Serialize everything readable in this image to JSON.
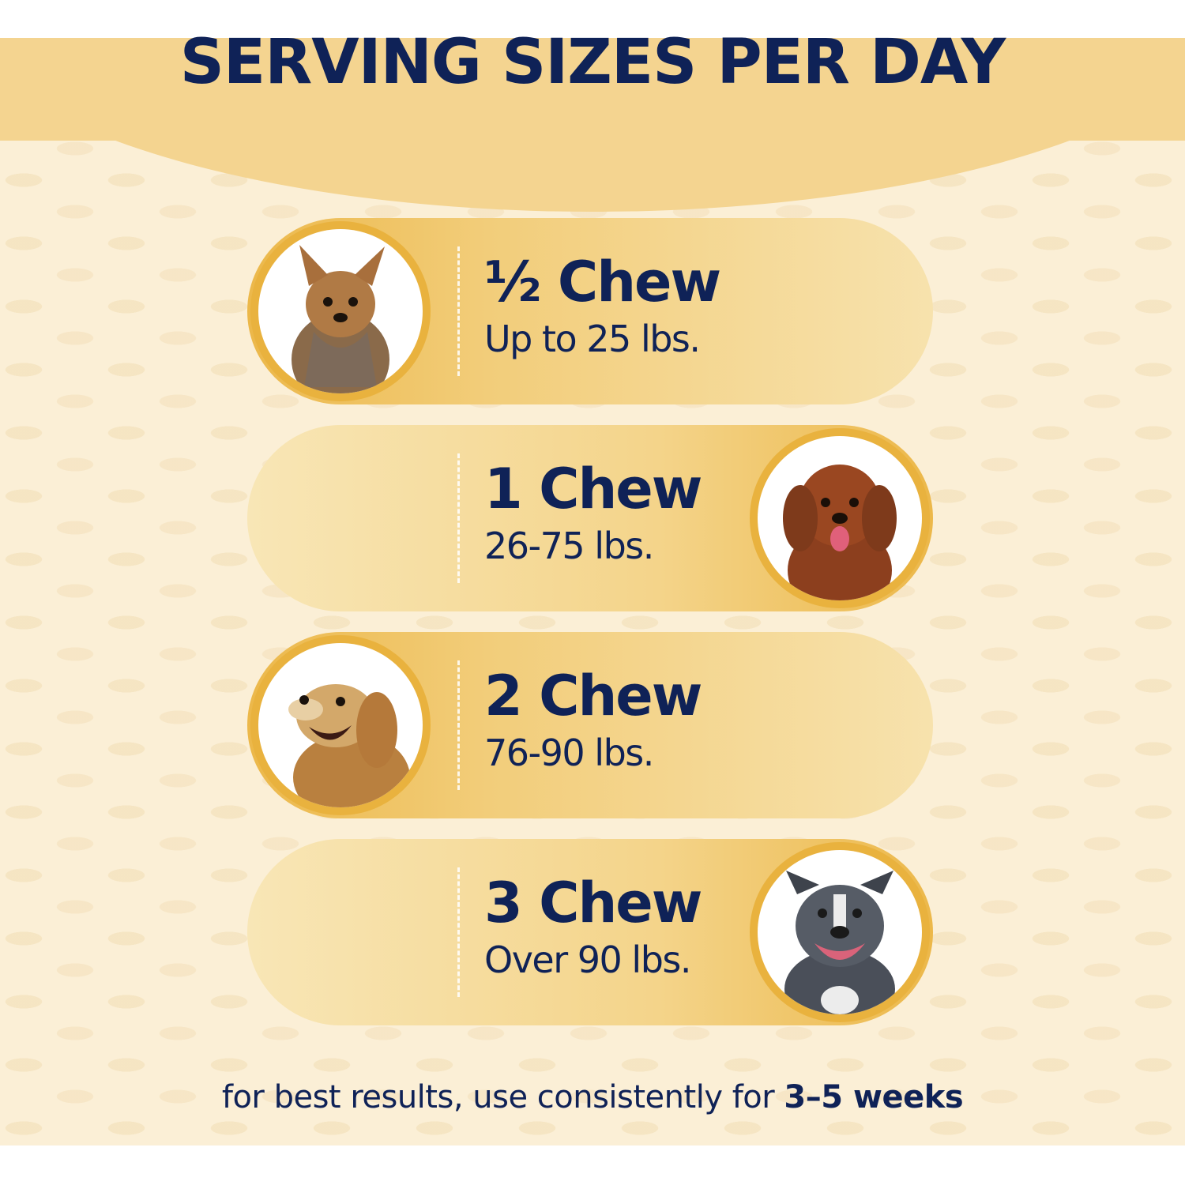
{
  "title": "SERVING SIZES PER DAY",
  "servings": [
    {
      "dose": "½ Chew",
      "weight": "Up to 25 lbs.",
      "photo": "yorkshire-terrier-photo"
    },
    {
      "dose": "1 Chew",
      "weight": "26-75 lbs.",
      "photo": "goldendoodle-photo"
    },
    {
      "dose": "2 Chew",
      "weight": "76-90 lbs.",
      "photo": "golden-retriever-photo"
    },
    {
      "dose": "3 Chew",
      "weight": "Over 90 lbs.",
      "photo": "pit-bull-photo"
    }
  ],
  "footer": {
    "text": "for best results, use consistently for ",
    "emphasis": "3–5 weeks"
  },
  "colors": {
    "navy": "#0f2257",
    "gold": "#e9b23e",
    "header_band": "#f4d490",
    "background": "#fbefd6"
  }
}
